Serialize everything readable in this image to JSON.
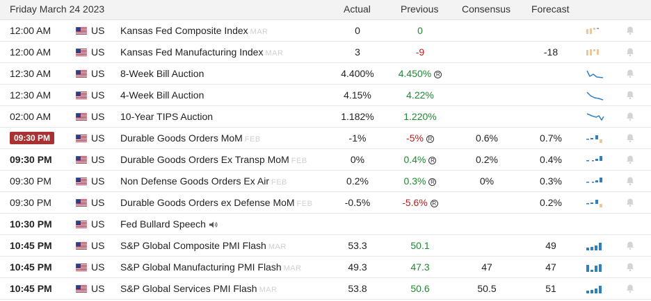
{
  "header": {
    "date": "Friday March 24 2023",
    "actual": "Actual",
    "previous": "Previous",
    "consensus": "Consensus",
    "forecast": "Forecast"
  },
  "rows": [
    {
      "time": "12:00 AM",
      "country": "US",
      "event": "Kansas Fed Composite Index",
      "period": "MAR",
      "actual": "0",
      "previous": "0",
      "consensus": "",
      "forecast": "",
      "spark": "bars-tan"
    },
    {
      "time": "12:00 AM",
      "country": "US",
      "event": "Kansas Fed Manufacturing Index",
      "period": "MAR",
      "actual": "3",
      "previous": "-9",
      "consensus": "",
      "forecast": "-18",
      "spark": "bars-tan"
    },
    {
      "time": "12:30 AM",
      "country": "US",
      "event": "8-Week Bill Auction",
      "period": "",
      "actual": "4.400%",
      "previous": "4.450%",
      "consensus": "",
      "forecast": "",
      "spark": "line-down"
    },
    {
      "time": "12:30 AM",
      "country": "US",
      "event": "4-Week Bill Auction",
      "period": "",
      "actual": "4.15%",
      "previous": "4.22%",
      "consensus": "",
      "forecast": "",
      "spark": "line-down"
    },
    {
      "time": "02:00 AM",
      "country": "US",
      "event": "10-Year TIPS Auction",
      "period": "",
      "actual": "1.182%",
      "previous": "1.220%",
      "consensus": "",
      "forecast": "",
      "spark": "line-down"
    },
    {
      "time": "09:30 PM",
      "country": "US",
      "event": "Durable Goods Orders MoM",
      "period": "FEB",
      "actual": "-1%",
      "previous": "-5%",
      "consensus": "0.6%",
      "forecast": "0.7%",
      "spark": "bars-blue"
    },
    {
      "time": "09:30 PM",
      "country": "US",
      "event": "Durable Goods Orders Ex Transp MoM",
      "period": "FEB",
      "actual": "0%",
      "previous": "0.4%",
      "consensus": "0.2%",
      "forecast": "0.4%",
      "spark": "bars-blue"
    },
    {
      "time": "09:30 PM",
      "country": "US",
      "event": "Non Defense Goods Orders Ex Air",
      "period": "FEB",
      "actual": "0.2%",
      "previous": "0.3%",
      "consensus": "0%",
      "forecast": "0.3%",
      "spark": "bars-blue"
    },
    {
      "time": "09:30 PM",
      "country": "US",
      "event": "Durable Goods Orders ex Defense MoM",
      "period": "FEB",
      "actual": "-0.5%",
      "previous": "-5.6%",
      "consensus": "",
      "forecast": "0.2%",
      "spark": "bars-blue"
    },
    {
      "time": "10:30 PM",
      "country": "US",
      "event": "Fed Bullard Speech",
      "period": "",
      "actual": "",
      "previous": "",
      "consensus": "",
      "forecast": "",
      "spark": "none"
    },
    {
      "time": "10:45 PM",
      "country": "US",
      "event": "S&P Global Composite PMI Flash",
      "period": "MAR",
      "actual": "53.3",
      "previous": "50.1",
      "consensus": "",
      "forecast": "49",
      "spark": "bars-blue-up"
    },
    {
      "time": "10:45 PM",
      "country": "US",
      "event": "S&P Global Manufacturing PMI Flash",
      "period": "MAR",
      "actual": "49.3",
      "previous": "47.3",
      "consensus": "47",
      "forecast": "47",
      "spark": "bars-blue-up"
    },
    {
      "time": "10:45 PM",
      "country": "US",
      "event": "S&P Global Services PMI Flash",
      "period": "MAR",
      "actual": "53.8",
      "previous": "50.6",
      "consensus": "50.5",
      "forecast": "51",
      "spark": "bars-blue-up"
    }
  ],
  "colors": {
    "positive": "#1b8a2e",
    "negative": "#b22020",
    "badge": "#a83232",
    "spark_blue": "#2f7fc1",
    "spark_tan": "#e8c99a"
  }
}
